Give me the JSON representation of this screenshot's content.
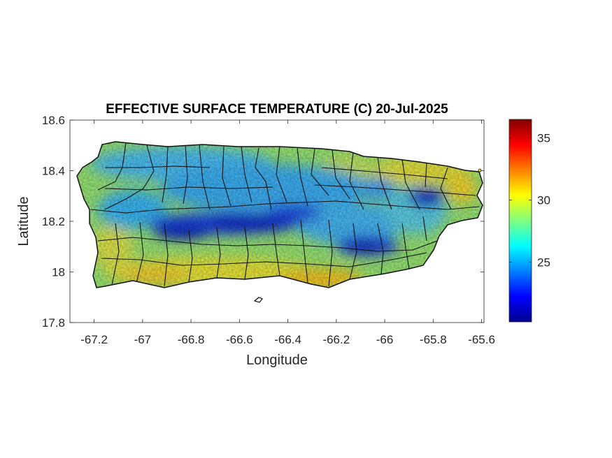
{
  "chart_data": {
    "type": "heatmap",
    "title": "EFFECTIVE SURFACE TEMPERATURE (C) 20-Jul-2025",
    "xlabel": "Longitude",
    "ylabel": "Latitude",
    "xlim": [
      -67.3,
      -65.59
    ],
    "ylim": [
      17.8,
      18.6
    ],
    "xticks": [
      -67.2,
      -67,
      -66.8,
      -66.6,
      -66.4,
      -66.2,
      -66,
      -65.8,
      -65.6
    ],
    "xtick_labels": [
      "-67.2",
      "-67",
      "-66.8",
      "-66.6",
      "-66.4",
      "-66.2",
      "-66",
      "-65.8",
      "-65.6"
    ],
    "yticks": [
      17.8,
      18,
      18.2,
      18.4,
      18.6
    ],
    "ytick_labels": [
      "17.8",
      "18",
      "18.2",
      "18.4",
      "18.6"
    ],
    "colorbar": {
      "colormap": "jet",
      "range": [
        20.2,
        36.5
      ],
      "ticks": [
        25,
        30,
        35
      ],
      "tick_labels": [
        "25",
        "30",
        "35"
      ]
    },
    "region_outline_color": "#000000",
    "coolest_zones": [
      {
        "lon": -66.55,
        "lat": 18.16,
        "value": 21
      },
      {
        "lon": -66.75,
        "lat": 18.13,
        "value": 21.5
      },
      {
        "lon": -66.05,
        "lat": 18.09,
        "value": 22
      },
      {
        "lon": -65.8,
        "lat": 18.29,
        "value": 21
      }
    ],
    "warmest_zones": [
      {
        "lon": -66.25,
        "lat": 17.96,
        "value": 31
      },
      {
        "lon": -66.95,
        "lat": 17.99,
        "value": 30.5
      },
      {
        "lon": -65.65,
        "lat": 18.35,
        "value": 30.5
      }
    ]
  }
}
